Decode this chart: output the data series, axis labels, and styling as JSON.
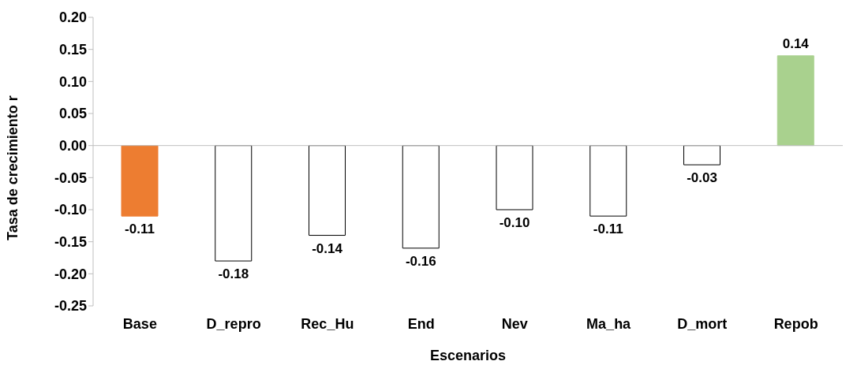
{
  "chart_data": {
    "type": "bar",
    "xlabel": "Escenarios",
    "ylabel": "Tasa de crecimiento r",
    "categories": [
      "Base",
      "D_repro",
      "Rec_Hu",
      "End",
      "Nev",
      "Ma_ha",
      "D_mort",
      "Repob"
    ],
    "values": [
      -0.11,
      -0.18,
      -0.14,
      -0.16,
      -0.1,
      -0.11,
      -0.03,
      0.14
    ],
    "value_labels": [
      "-0.11",
      "-0.18",
      "-0.14",
      "-0.16",
      "-0.10",
      "-0.11",
      "-0.03",
      "0.14"
    ],
    "colors": [
      "#ed7d31",
      "#ffffff",
      "#ffffff",
      "#ffffff",
      "#ffffff",
      "#ffffff",
      "#ffffff",
      "#a9d18e"
    ],
    "ylim": [
      -0.25,
      0.2
    ],
    "yticks": [
      {
        "value": -0.25,
        "label": "-0.25"
      },
      {
        "value": -0.2,
        "label": "-0.20"
      },
      {
        "value": -0.15,
        "label": "-0.15"
      },
      {
        "value": -0.1,
        "label": "-0.10"
      },
      {
        "value": -0.05,
        "label": "-0.05"
      },
      {
        "value": 0,
        "label": "0.00"
      },
      {
        "value": 0.05,
        "label": "0.05"
      },
      {
        "value": 0.1,
        "label": "0.10"
      },
      {
        "value": 0.15,
        "label": "0.15"
      },
      {
        "value": 0.2,
        "label": "0.20"
      }
    ],
    "legend": false
  }
}
